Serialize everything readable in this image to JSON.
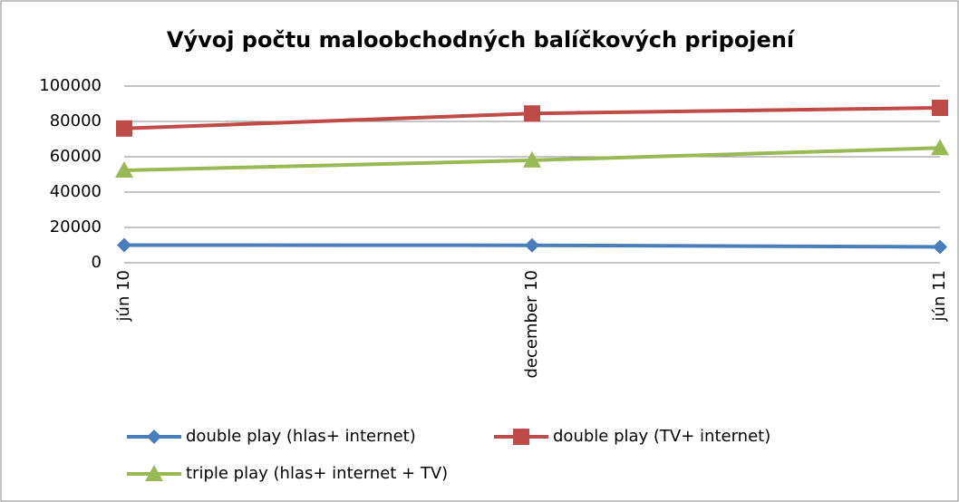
{
  "chart_data": {
    "type": "line",
    "title": "Vývoj počtu maloobchodných balíčkových pripojení",
    "categories": [
      "jún 10",
      "december 10",
      "jún 11"
    ],
    "series": [
      {
        "name": "double play (hlas+ internet)",
        "color": "#4a7ebb",
        "marker": "diamond",
        "values": [
          10000,
          9900,
          9000
        ]
      },
      {
        "name": "double play (TV+ internet)",
        "color": "#be4b48",
        "marker": "square",
        "values": [
          76000,
          84500,
          87700
        ]
      },
      {
        "name": "triple play (hlas+ internet + TV)",
        "color": "#98b954",
        "marker": "triangle",
        "values": [
          52300,
          58000,
          65000
        ]
      }
    ],
    "ylim": [
      0,
      100000
    ],
    "yticks": [
      0,
      20000,
      40000,
      60000,
      80000,
      100000
    ],
    "grid": true,
    "legend": "bottom"
  }
}
